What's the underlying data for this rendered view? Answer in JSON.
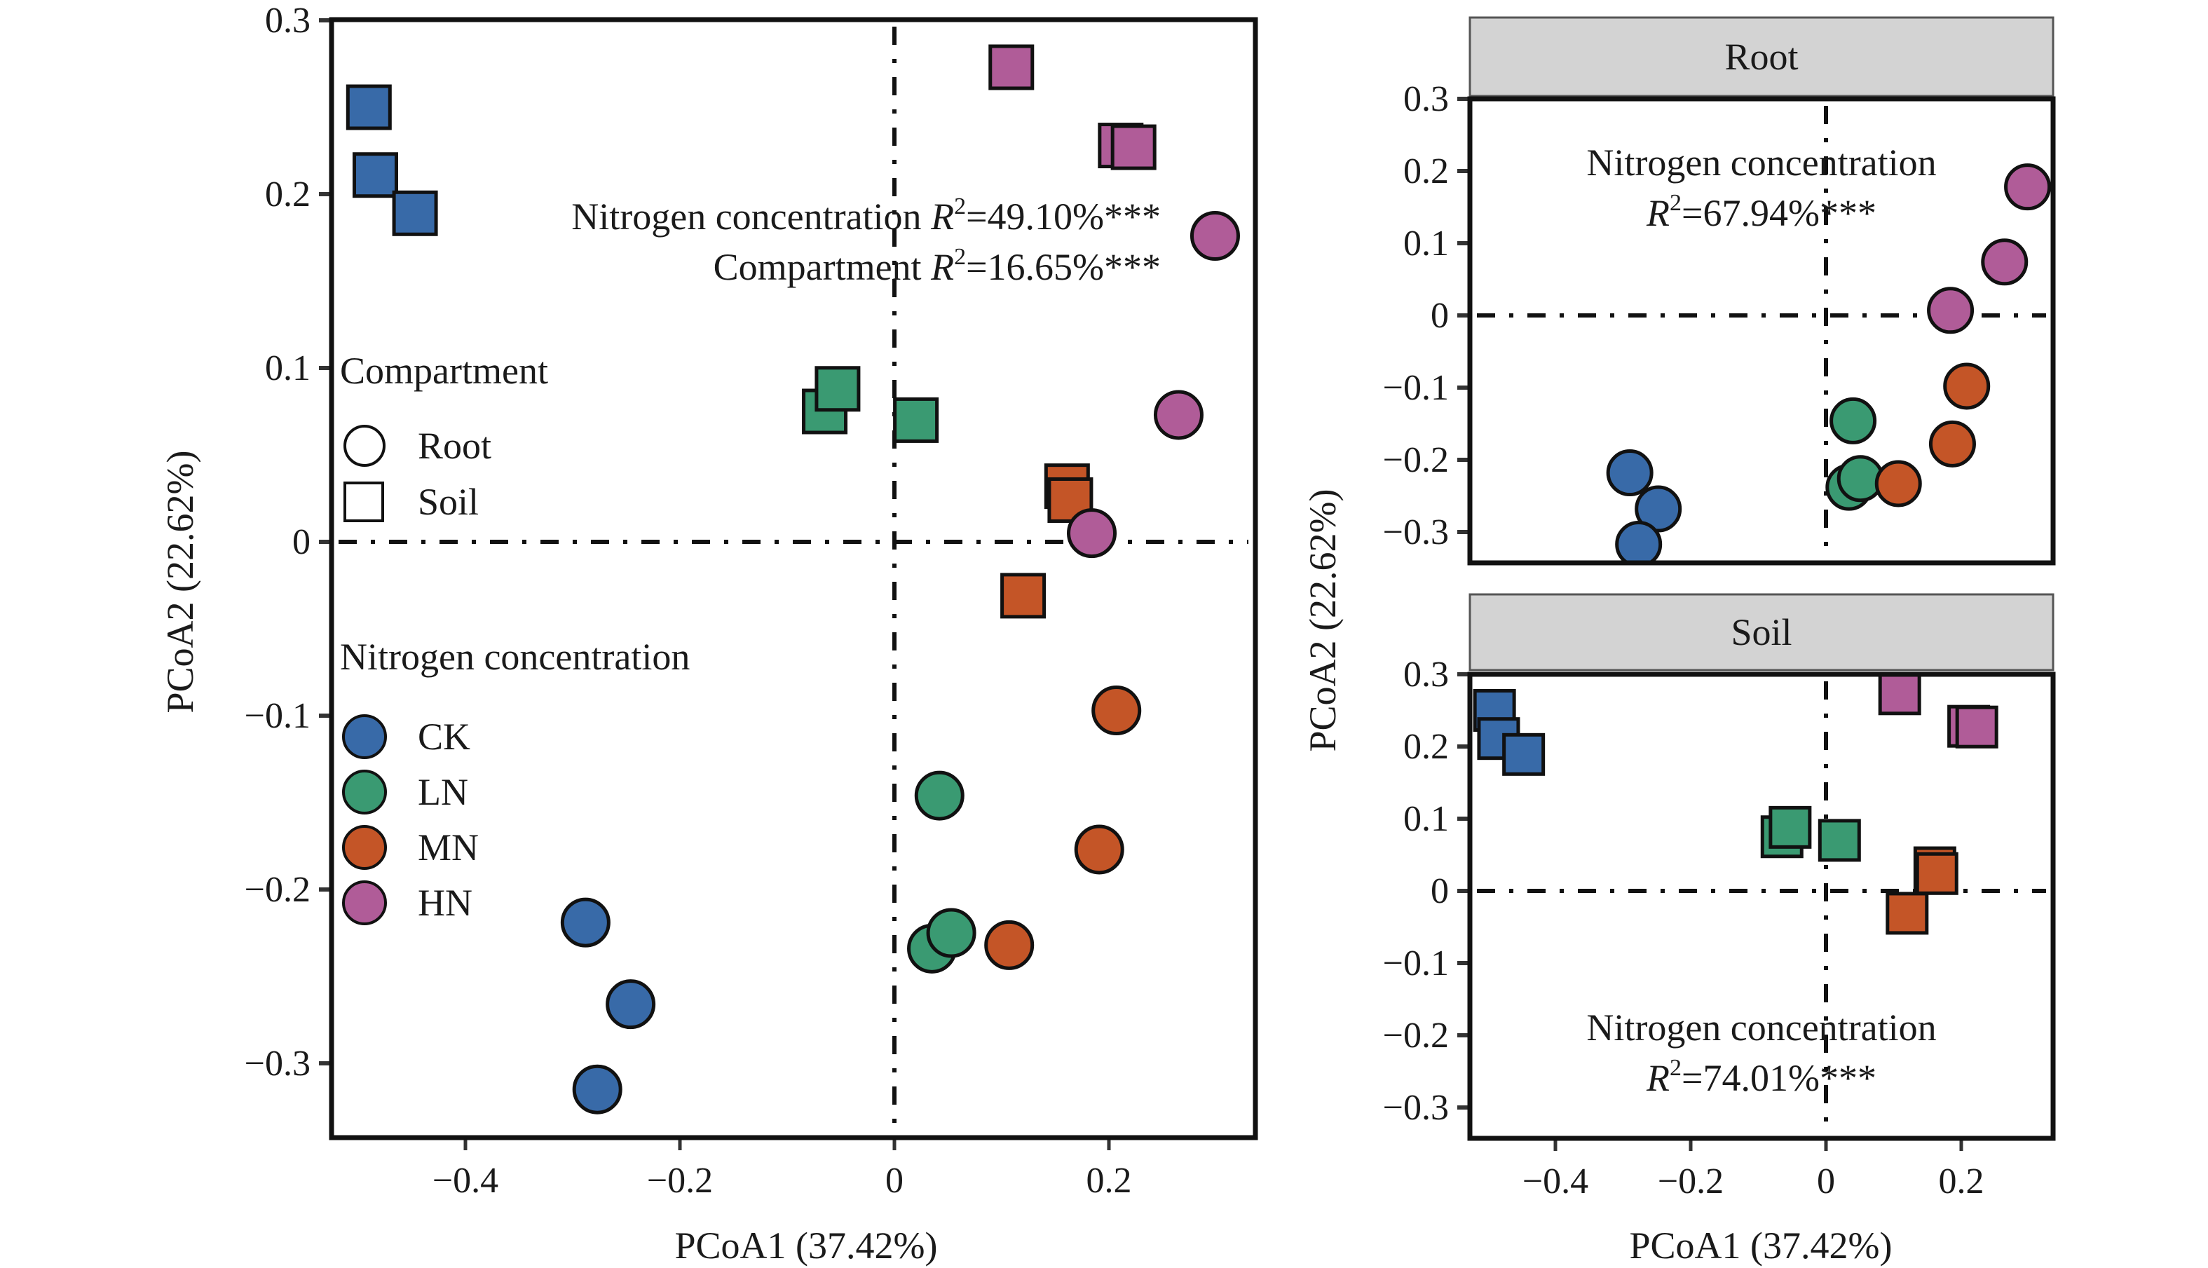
{
  "colors": {
    "CK": "#386AA8",
    "LN": "#3A9A72",
    "MN": "#C45527",
    "HN": "#B05C98",
    "strip_fill": "#D3D3D3",
    "strip_border": "#555555",
    "frame": "#111111"
  },
  "chart_data": [
    {
      "id": "main",
      "type": "scatter",
      "title": "",
      "xlabel": "PCoA1 (37.42%)",
      "ylabel": "PCoA2 (22.62%)",
      "xlim": [
        -0.525,
        0.337
      ],
      "ylim": [
        -0.343,
        0.3
      ],
      "xticks": [
        -0.4,
        -0.2,
        0,
        0.2
      ],
      "xtick_labels": [
        "−0.4",
        "−0.2",
        "0",
        "0.2"
      ],
      "yticks": [
        0.3,
        0.2,
        0.1,
        0,
        -0.1,
        -0.2,
        -0.3
      ],
      "ytick_labels": [
        "0.3",
        "0.2",
        "0.1",
        "0",
        "−0.1",
        "−0.2",
        "−0.3"
      ],
      "reference_lines": {
        "x": 0,
        "y": 0,
        "style": "dash-dot"
      },
      "grid": false,
      "annotations": [
        {
          "label": "Nitrogen concentration",
          "r2": "=49.10%***"
        },
        {
          "label": "Compartment",
          "r2": "=16.65%***"
        }
      ],
      "legend": {
        "placement": "left",
        "compartment_title": "Compartment",
        "compartment_items": [
          {
            "label": "Root",
            "shape": "circle"
          },
          {
            "label": "Soil",
            "shape": "square"
          }
        ],
        "nitrogen_title": "Nitrogen concentration",
        "nitrogen_items": [
          {
            "label": "CK",
            "group": "CK"
          },
          {
            "label": "LN",
            "group": "LN"
          },
          {
            "label": "MN",
            "group": "MN"
          },
          {
            "label": "HN",
            "group": "HN"
          }
        ]
      },
      "series": [
        {
          "name": "CK",
          "shape": "square",
          "points": [
            [
              -0.49,
              0.25
            ],
            [
              -0.484,
              0.211
            ],
            [
              -0.447,
              0.189
            ]
          ]
        },
        {
          "name": "CK",
          "shape": "circle",
          "points": [
            [
              -0.288,
              -0.219
            ],
            [
              -0.246,
              -0.266
            ],
            [
              -0.277,
              -0.315
            ]
          ]
        },
        {
          "name": "LN",
          "shape": "square",
          "points": [
            [
              -0.065,
              0.075
            ],
            [
              -0.053,
              0.088
            ],
            [
              0.02,
              0.07
            ]
          ]
        },
        {
          "name": "LN",
          "shape": "circle",
          "points": [
            [
              0.042,
              -0.146
            ],
            [
              0.035,
              -0.234
            ],
            [
              0.053,
              -0.225
            ]
          ]
        },
        {
          "name": "MN",
          "shape": "square",
          "points": [
            [
              0.161,
              0.032
            ],
            [
              0.164,
              0.024
            ],
            [
              0.12,
              -0.031
            ]
          ]
        },
        {
          "name": "MN",
          "shape": "circle",
          "points": [
            [
              0.207,
              -0.097
            ],
            [
              0.191,
              -0.177
            ],
            [
              0.107,
              -0.232
            ]
          ]
        },
        {
          "name": "HN",
          "shape": "square",
          "points": [
            [
              0.109,
              0.273
            ],
            [
              0.211,
              0.228
            ],
            [
              0.223,
              0.227
            ]
          ]
        },
        {
          "name": "HN",
          "shape": "circle",
          "points": [
            [
              0.299,
              0.176
            ],
            [
              0.265,
              0.073
            ],
            [
              0.184,
              0.005
            ]
          ]
        }
      ]
    },
    {
      "id": "root",
      "type": "scatter",
      "strip": "Root",
      "xlim": [
        -0.525,
        0.337
      ],
      "ylim": [
        -0.343,
        0.3
      ],
      "yticks": [
        0.3,
        0.2,
        0.1,
        0,
        -0.1,
        -0.2,
        -0.3
      ],
      "ytick_labels": [
        "0.3",
        "0.2",
        "0.1",
        "0",
        "−0.1",
        "−0.2",
        "−0.3"
      ],
      "xticks": [],
      "xtick_labels": [],
      "reference_lines": {
        "x": 0,
        "y": 0,
        "style": "dash-dot"
      },
      "annotations": [
        {
          "label": "Nitrogen concentration",
          "r2": "=67.94%***"
        }
      ],
      "series": [
        {
          "name": "CK",
          "shape": "circle",
          "points": [
            [
              -0.29,
              -0.218
            ],
            [
              -0.248,
              -0.268
            ],
            [
              -0.277,
              -0.317
            ]
          ]
        },
        {
          "name": "LN",
          "shape": "circle",
          "points": [
            [
              0.04,
              -0.146
            ],
            [
              0.034,
              -0.238
            ],
            [
              0.051,
              -0.226
            ]
          ]
        },
        {
          "name": "MN",
          "shape": "circle",
          "points": [
            [
              0.107,
              -0.233
            ],
            [
              0.187,
              -0.178
            ],
            [
              0.208,
              -0.098
            ]
          ]
        },
        {
          "name": "HN",
          "shape": "circle",
          "points": [
            [
              0.184,
              0.007
            ],
            [
              0.264,
              0.074
            ],
            [
              0.298,
              0.178
            ]
          ]
        }
      ]
    },
    {
      "id": "soil",
      "type": "scatter",
      "strip": "Soil",
      "xlabel": "PCoA1 (37.42%)",
      "xlim": [
        -0.525,
        0.337
      ],
      "ylim": [
        -0.343,
        0.3
      ],
      "xticks": [
        -0.4,
        -0.2,
        0,
        0.2
      ],
      "xtick_labels": [
        "−0.4",
        "−0.2",
        "0",
        "0.2"
      ],
      "yticks": [
        0.3,
        0.2,
        0.1,
        0,
        -0.1,
        -0.2,
        -0.3
      ],
      "ytick_labels": [
        "0.3",
        "0.2",
        "0.1",
        "0",
        "−0.1",
        "−0.2",
        "−0.3"
      ],
      "reference_lines": {
        "x": 0,
        "y": 0,
        "style": "dash-dot"
      },
      "annotations": [
        {
          "label": "Nitrogen concentration",
          "r2": "=74.01%***"
        }
      ],
      "series": [
        {
          "name": "CK",
          "shape": "square",
          "points": [
            [
              -0.49,
              0.25
            ],
            [
              -0.484,
              0.211
            ],
            [
              -0.447,
              0.189
            ]
          ]
        },
        {
          "name": "LN",
          "shape": "square",
          "points": [
            [
              -0.065,
              0.075
            ],
            [
              -0.053,
              0.088
            ],
            [
              0.02,
              0.07
            ]
          ]
        },
        {
          "name": "MN",
          "shape": "square",
          "points": [
            [
              0.161,
              0.032
            ],
            [
              0.164,
              0.024
            ],
            [
              0.12,
              -0.031
            ]
          ]
        },
        {
          "name": "HN",
          "shape": "square",
          "points": [
            [
              0.109,
              0.273
            ],
            [
              0.211,
              0.228
            ],
            [
              0.223,
              0.227
            ]
          ]
        }
      ]
    }
  ],
  "shared_ylabel": "PCoA2 (22.62%)",
  "r2_symbol": "R",
  "r2_superscript": "2"
}
